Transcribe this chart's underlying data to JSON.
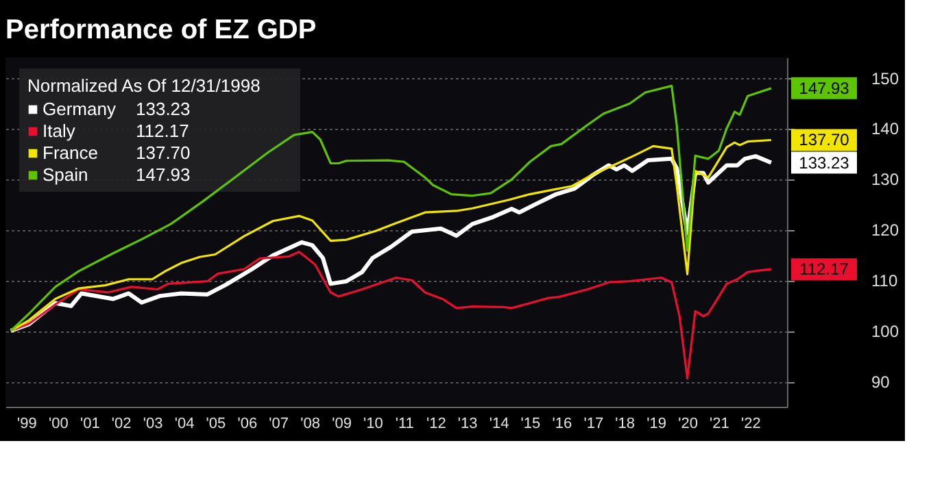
{
  "chart_data": {
    "type": "line",
    "title": "Performance of EZ GDP",
    "legend_title": "Normalized As Of 12/31/1998",
    "legend": "top left",
    "grid": "y",
    "line_style": "solid",
    "marker": "none",
    "xlim": [
      "1998-11",
      "2023-09"
    ],
    "xticks": [
      {
        "value": "1999-07",
        "label": "'99"
      },
      {
        "value": "2000-07",
        "label": "'00"
      },
      {
        "value": "2001-07",
        "label": "'01"
      },
      {
        "value": "2002-07",
        "label": "'02"
      },
      {
        "value": "2003-07",
        "label": "'03"
      },
      {
        "value": "2004-07",
        "label": "'04"
      },
      {
        "value": "2005-07",
        "label": "'05"
      },
      {
        "value": "2006-07",
        "label": "'06"
      },
      {
        "value": "2007-07",
        "label": "'07"
      },
      {
        "value": "2008-07",
        "label": "'08"
      },
      {
        "value": "2009-07",
        "label": "'09"
      },
      {
        "value": "2010-07",
        "label": "'10"
      },
      {
        "value": "2011-07",
        "label": "'11"
      },
      {
        "value": "2012-07",
        "label": "'12"
      },
      {
        "value": "2013-07",
        "label": "'13"
      },
      {
        "value": "2014-07",
        "label": "'14"
      },
      {
        "value": "2015-07",
        "label": "'15"
      },
      {
        "value": "2016-07",
        "label": "'16"
      },
      {
        "value": "2017-07",
        "label": "'17"
      },
      {
        "value": "2018-07",
        "label": "'18"
      },
      {
        "value": "2019-07",
        "label": "'19"
      },
      {
        "value": "2020-07",
        "label": "'20"
      },
      {
        "value": "2021-07",
        "label": "'21"
      },
      {
        "value": "2022-07",
        "label": "'22"
      }
    ],
    "ylim": [
      85,
      154
    ],
    "yticks": [
      90,
      100,
      110,
      120,
      130,
      140,
      150
    ],
    "series": [
      {
        "name": "Germany",
        "color": "#ffffff",
        "x": [
          "1999-01",
          "1999-08",
          "2000-06",
          "2000-12",
          "2001-04",
          "2002-04",
          "2002-10",
          "2003-03",
          "2003-10",
          "2004-06",
          "2005-04",
          "2005-11",
          "2006-09",
          "2007-05",
          "2008-04",
          "2008-08",
          "2008-12",
          "2009-03",
          "2009-09",
          "2010-03",
          "2010-07",
          "2011-02",
          "2011-10",
          "2012-09",
          "2013-03",
          "2013-09",
          "2014-05",
          "2014-12",
          "2015-03",
          "2015-09",
          "2016-05",
          "2016-12",
          "2017-07",
          "2018-01",
          "2018-04",
          "2018-07",
          "2018-10",
          "2019-04",
          "2020-01",
          "2020-03",
          "2020-07",
          "2020-10",
          "2021-01",
          "2021-03",
          "2021-10",
          "2022-02",
          "2022-05",
          "2022-09",
          "2023-03"
        ],
        "values": [
          100,
          101.3,
          105.5,
          104.9,
          107.4,
          106.3,
          107.4,
          105.6,
          106.9,
          107.4,
          107.2,
          109.1,
          112.2,
          114.9,
          117.5,
          116.9,
          114.4,
          109.3,
          109.8,
          111.6,
          114.4,
          116.6,
          119.6,
          120.2,
          118.8,
          121.1,
          122.5,
          124.1,
          123.4,
          125.0,
          127.0,
          128.1,
          130.8,
          132.7,
          131.9,
          132.7,
          131.6,
          133.7,
          134.0,
          132.1,
          119.3,
          131.2,
          131.2,
          129.3,
          132.7,
          132.7,
          134.0,
          134.5,
          133.23
        ],
        "value_labels": [
          null,
          null,
          null,
          null,
          null,
          null,
          null,
          null,
          null,
          null,
          null,
          null,
          null,
          null,
          null,
          null,
          null,
          null,
          null,
          null,
          null,
          null,
          null,
          null,
          null,
          null,
          null,
          null,
          null,
          null,
          null,
          null,
          null,
          null,
          null,
          null,
          null,
          null,
          null,
          null,
          null,
          null,
          null,
          null,
          null,
          null,
          null,
          null,
          "133.23"
        ]
      },
      {
        "name": "Italy",
        "color": "#e8102e",
        "x": [
          "1999-01",
          "1999-08",
          "2000-06",
          "2001-03",
          "2002-02",
          "2002-11",
          "2003-09",
          "2004-01",
          "2005-04",
          "2005-08",
          "2006-06",
          "2006-12",
          "2007-11",
          "2008-03",
          "2008-09",
          "2009-03",
          "2009-06",
          "2010-03",
          "2011-04",
          "2011-10",
          "2012-03",
          "2012-10",
          "2013-03",
          "2013-09",
          "2014-09",
          "2014-12",
          "2016-02",
          "2016-06",
          "2017-05",
          "2018-01",
          "2018-09",
          "2019-09",
          "2020-01",
          "2020-04",
          "2020-07",
          "2020-10",
          "2021-01",
          "2021-03",
          "2021-10",
          "2022-02",
          "2022-06",
          "2022-10",
          "2023-03"
        ],
        "values": [
          100,
          101.4,
          105.2,
          108.2,
          107.6,
          108.7,
          108.2,
          109.3,
          109.8,
          111.3,
          112.2,
          114.3,
          114.7,
          115.6,
          113.1,
          107.6,
          106.8,
          108.2,
          110.5,
          110.0,
          107.6,
          106.2,
          104.5,
          104.8,
          104.7,
          104.5,
          106.5,
          106.7,
          108.2,
          109.6,
          109.8,
          110.5,
          109.6,
          102.9,
          90.6,
          103.9,
          102.9,
          103.4,
          109.3,
          110.2,
          111.6,
          111.9,
          112.17
        ],
        "value_labels": [
          null,
          null,
          null,
          null,
          null,
          null,
          null,
          null,
          null,
          null,
          null,
          null,
          null,
          null,
          null,
          null,
          null,
          null,
          null,
          null,
          null,
          null,
          null,
          null,
          null,
          null,
          null,
          null,
          null,
          null,
          null,
          null,
          null,
          null,
          null,
          null,
          null,
          null,
          null,
          null,
          null,
          null,
          "112.17"
        ]
      },
      {
        "name": "France",
        "color": "#f2e600",
        "x": [
          "1999-01",
          "1999-08",
          "2000-06",
          "2001-03",
          "2002-01",
          "2002-10",
          "2003-07",
          "2003-12",
          "2004-06",
          "2005-01",
          "2005-07",
          "2006-06",
          "2007-05",
          "2008-03",
          "2008-08",
          "2009-03",
          "2009-09",
          "2010-08",
          "2011-04",
          "2012-03",
          "2013-03",
          "2013-09",
          "2014-11",
          "2015-07",
          "2016-03",
          "2016-11",
          "2017-07",
          "2018-04",
          "2018-11",
          "2019-06",
          "2020-01",
          "2020-03",
          "2020-07",
          "2020-10",
          "2021-03",
          "2021-10",
          "2022-01",
          "2022-03",
          "2022-06",
          "2023-03"
        ],
        "values": [
          100,
          102.1,
          106.3,
          108.4,
          109.0,
          110.2,
          110.2,
          111.8,
          113.4,
          114.6,
          115.1,
          118.7,
          121.7,
          122.7,
          121.8,
          117.8,
          118.0,
          119.7,
          121.3,
          123.4,
          123.7,
          124.2,
          125.9,
          127.0,
          127.8,
          128.6,
          130.9,
          133.0,
          134.7,
          136.5,
          136.0,
          128.6,
          111.2,
          131.6,
          130.3,
          136.3,
          137.2,
          136.7,
          137.4,
          137.7
        ],
        "value_labels": [
          null,
          null,
          null,
          null,
          null,
          null,
          null,
          null,
          null,
          null,
          null,
          null,
          null,
          null,
          null,
          null,
          null,
          null,
          null,
          null,
          null,
          null,
          null,
          null,
          null,
          null,
          null,
          null,
          null,
          null,
          null,
          null,
          null,
          null,
          null,
          null,
          null,
          null,
          null,
          "137.70"
        ]
      },
      {
        "name": "Spain",
        "color": "#5cc400",
        "x": [
          "1999-01",
          "1999-08",
          "2000-06",
          "2001-03",
          "2002-04",
          "2003-03",
          "2004-02",
          "2005-02",
          "2006-03",
          "2007-03",
          "2008-01",
          "2008-08",
          "2008-11",
          "2009-03",
          "2009-06",
          "2009-09",
          "2011-01",
          "2011-07",
          "2012-03",
          "2012-06",
          "2013-01",
          "2013-09",
          "2014-04",
          "2014-12",
          "2015-07",
          "2016-03",
          "2016-07",
          "2017-05",
          "2017-11",
          "2018-09",
          "2019-03",
          "2020-01",
          "2020-03",
          "2020-07",
          "2020-10",
          "2021-03",
          "2021-07",
          "2021-10",
          "2022-01",
          "2022-03",
          "2022-06",
          "2023-03"
        ],
        "values": [
          100,
          103.4,
          108.7,
          111.8,
          115.3,
          118.1,
          121.1,
          125.5,
          130.5,
          135.2,
          138.7,
          139.3,
          137.8,
          133.1,
          133.1,
          133.6,
          133.7,
          133.4,
          130.3,
          128.8,
          127.0,
          126.7,
          127.2,
          129.9,
          133.4,
          136.5,
          136.9,
          140.7,
          142.9,
          144.9,
          147.1,
          148.4,
          140.5,
          115.8,
          134.6,
          134.0,
          135.6,
          140.0,
          143.3,
          142.7,
          146.4,
          147.93
        ],
        "value_labels": [
          null,
          null,
          null,
          null,
          null,
          null,
          null,
          null,
          null,
          null,
          null,
          null,
          null,
          null,
          null,
          null,
          null,
          null,
          null,
          null,
          null,
          null,
          null,
          null,
          null,
          null,
          null,
          null,
          null,
          null,
          null,
          null,
          null,
          null,
          null,
          null,
          null,
          null,
          null,
          null,
          null,
          "147.93"
        ]
      }
    ]
  }
}
